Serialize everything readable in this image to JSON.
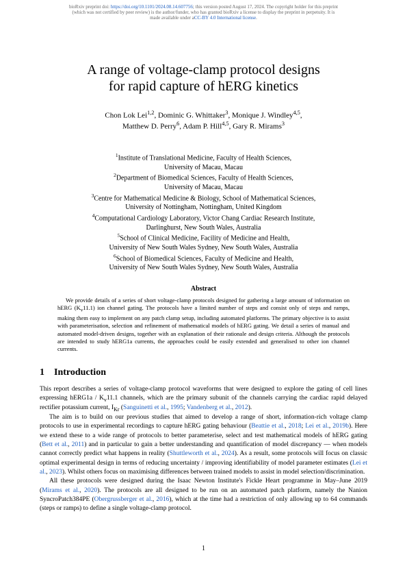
{
  "preprint": {
    "prefix": "bioRxiv preprint doi: ",
    "doi_url": "https://doi.org/10.1101/2024.08.14.607756",
    "line1_rest": "; this version posted August 17, 2024. The copyright holder for this preprint",
    "line2": "(which was not certified by peer review) is the author/funder, who has granted bioRxiv a license to display the preprint in perpetuity. It is",
    "line3_prefix": "made available under a",
    "license": "CC-BY 4.0 International license",
    "line3_suffix": "."
  },
  "title": {
    "line1": "A range of voltage-clamp protocol designs",
    "line2": "for rapid capture of hERG kinetics"
  },
  "authors": {
    "line1_html": "Chon Lok Lei<sup>1,2</sup>, Dominic G. Whittaker<sup>3</sup>, Monique J. Windley<sup>4,5</sup>,",
    "line2_html": "Matthew D. Perry<sup>6</sup>, Adam P. Hill<sup>4,5</sup>, Gary R. Mirams<sup>3</sup>"
  },
  "affiliations": {
    "a1_html": "<sup>1</sup>Institute of Translational Medicine, Faculty of Health Sciences,",
    "a1b": "University of Macau, Macau",
    "a2_html": "<sup>2</sup>Department of Biomedical Sciences, Faculty of Health Sciences,",
    "a2b": "University of Macau, Macau",
    "a3_html": "<sup>3</sup>Centre for Mathematical Medicine & Biology, School of Mathematical Sciences,",
    "a3b": "University of Nottingham, Nottingham, United Kingdom",
    "a4_html": "<sup>4</sup>Computational Cardiology Laboratory, Victor Chang Cardiac Research Institute,",
    "a4b": "Darlinghurst, New South Wales, Australia",
    "a5_html": "<sup>5</sup>School of Clinical Medicine, Facility of Medicine and Health,",
    "a5b": "University of New South Wales Sydney, New South Wales, Australia",
    "a6_html": "<sup>6</sup>School of Biomedical Sciences, Faculty of Medicine and Health,",
    "a6b": "University of New South Wales Sydney, New South Wales, Australia"
  },
  "abstract": {
    "heading": "Abstract",
    "body_html": "<span class=\"indent\"></span>We provide details of a series of short voltage-clamp protocols designed for gathering a large amount of information on hERG (K<sub>v</sub>11.1) ion channel gating. The protocols have a limited number of steps and consist only of steps and ramps, making them easy to implement on any patch clamp setup, including automated platforms. The primary objective is to assist with parameterisation, selection and refinement of mathematical models of hERG gating. We detail a series of manual and automated model-driven designs, together with an explanation of their rationale and design criteria. Although the protocols are intended to study hERG1a currents, the approaches could be easily extended and generalised to other ion channel currents."
  },
  "section": {
    "num": "1",
    "title": "Introduction"
  },
  "paragraphs": {
    "p1_html": "This report describes a series of voltage-clamp protocol waveforms that were designed to explore the gating of cell lines expressing hERG1a / K<sub>v</sub>11.1 channels, which are the primary subunit of the channels carrying the cardiac rapid delayed rectifier potassium current, I<sub>Kr</sub> (<span class=\"cite\">Sanguinetti et al.</span>, <span class=\"cite\">1995</span>; <span class=\"cite\">Vandenberg et al.</span>, <span class=\"cite\">2012</span>).",
    "p2_html": "<span class=\"indent\"></span>The aim is to build on our previous studies that aimed to develop a range of short, information-rich voltage clamp protocols to use in experimental recordings to capture hERG gating behaviour (<span class=\"cite\">Beattie et al.</span>, <span class=\"cite\">2018</span>; <span class=\"cite\">Lei et al.</span>, <span class=\"cite\">2019b</span>). Here we extend these to a wide range of protocols to better parameterise, select and test mathematical models of hERG gating (<span class=\"cite\">Bett et al.</span>, <span class=\"cite\">2011</span>) and in particular to gain a better understanding and quantification of model discrepancy — when models cannot correctly predict what happens in reality (<span class=\"cite\">Shuttleworth et al.</span>, <span class=\"cite\">2024</span>). As a result, some protocols will focus on classic optimal experimental design in terms of reducing uncertainty / improving identifiability of model parameter estimates (<span class=\"cite\">Lei et al.</span>, <span class=\"cite\">2023</span>). Whilst others focus on maximising differences between trained models to assist in model selection/discrimination.",
    "p3_html": "<span class=\"indent\"></span>All these protocols were designed during the Isaac Newton Institute's Fickle Heart programme in May–June 2019 (<span class=\"cite\">Mirams et al.</span>, <span class=\"cite\">2020</span>). The protocols are all designed to be run on an automated patch platform, namely the Nanion SyncroPatch384PE (<span class=\"cite\">Obergrussberger et al.</span>, <span class=\"cite\">2016</span>), which at the time had a restriction of only allowing up to 64 commands (steps or ramps) to define a single voltage-clamp protocol."
  },
  "page_number": "1",
  "colors": {
    "link": "#2060c0",
    "text": "#000000",
    "header_text": "#666666",
    "background": "#ffffff"
  }
}
